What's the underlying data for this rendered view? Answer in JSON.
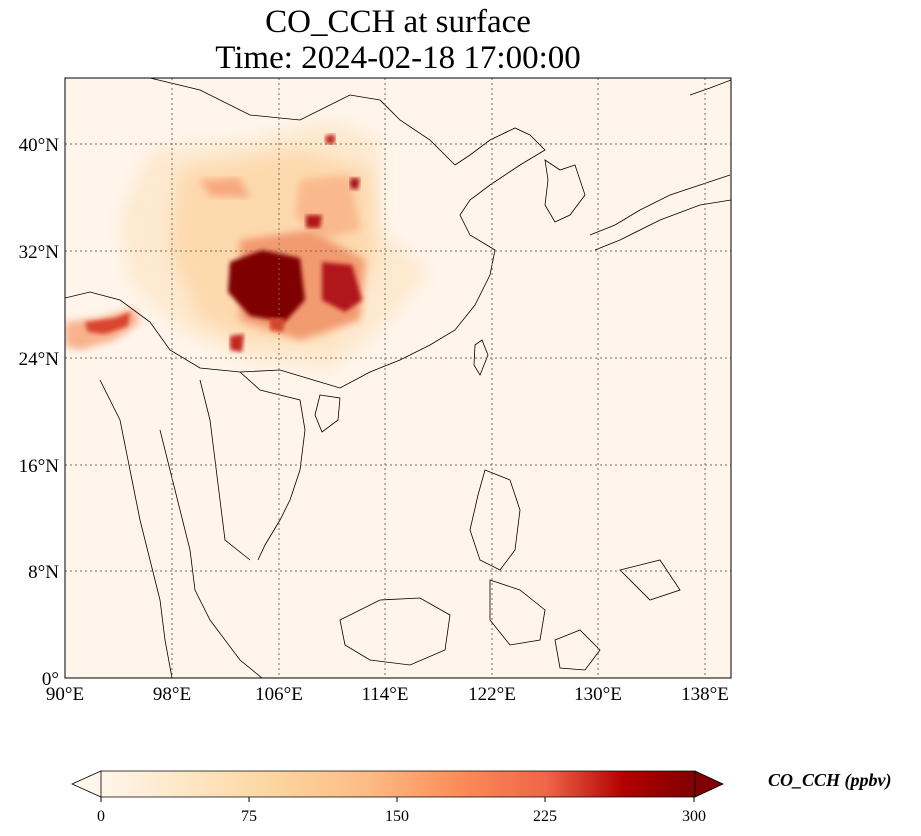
{
  "title": {
    "line1": "CO_CCH at surface",
    "line2": "Time: 2024-02-18 17:00:00"
  },
  "map": {
    "lat_ticks": [
      "0°",
      "8°N",
      "16°N",
      "24°N",
      "32°N",
      "40°N"
    ],
    "lon_ticks": [
      "90°E",
      "98°E",
      "106°E",
      "114°E",
      "122°E",
      "130°E",
      "138°E"
    ],
    "lat_range": [
      0,
      44.8
    ],
    "lon_range": [
      90,
      140
    ],
    "background_color": "#fff5eb",
    "gridlines": "dotted"
  },
  "colorbar": {
    "label": "CO_CCH (ppbv)",
    "ticks": [
      "0",
      "75",
      "150",
      "225",
      "300"
    ],
    "range": [
      0,
      300
    ],
    "colormap": "OrRd",
    "extend": "both"
  }
}
